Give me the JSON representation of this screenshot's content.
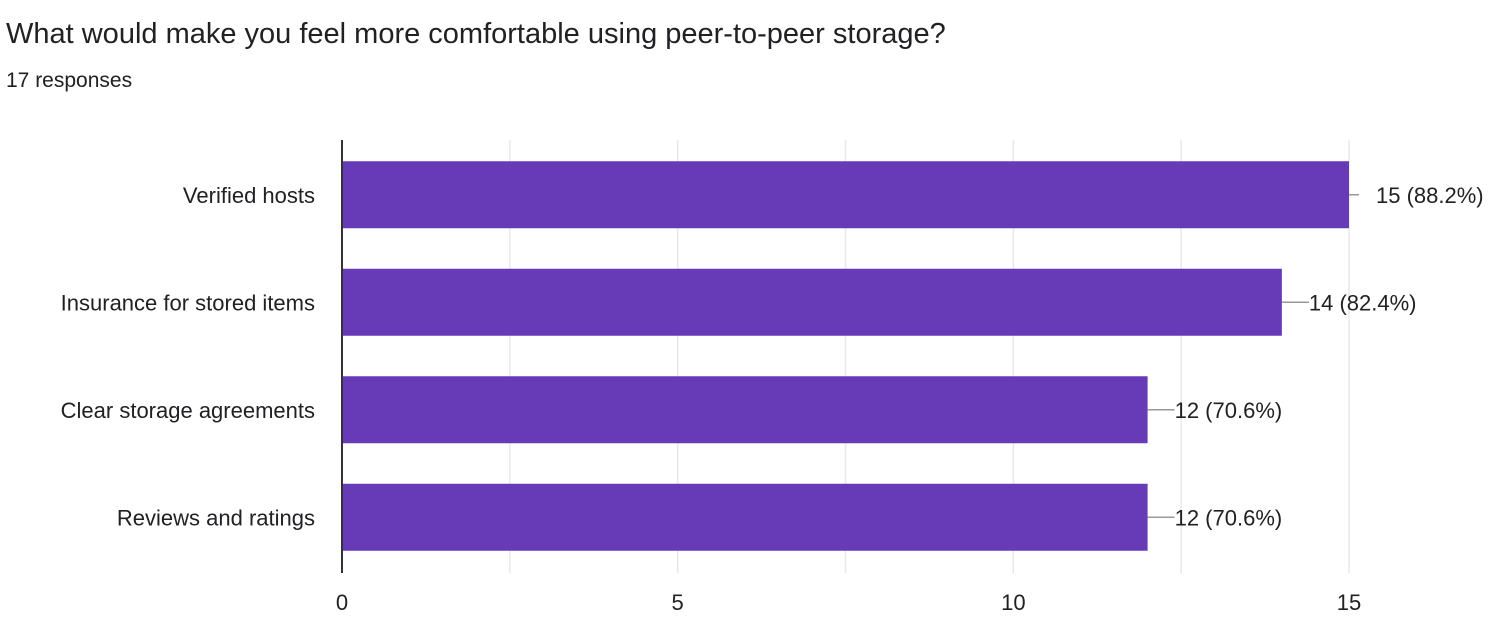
{
  "header": {
    "title": "What would make you feel more comfortable using peer-to-peer storage?",
    "responses": "17 responses"
  },
  "colors": {
    "bar": "#673ab7",
    "grid": "#e8e8e8",
    "axis": "#333333",
    "leader": "#999999",
    "text": "#202124"
  },
  "chart_data": {
    "type": "bar",
    "orientation": "horizontal",
    "title": "What would make you feel more comfortable using peer-to-peer storage?",
    "subtitle": "17 responses",
    "categories": [
      "Verified hosts",
      "Insurance for stored items",
      "Clear storage agreements",
      "Reviews and ratings"
    ],
    "values": [
      15,
      14,
      12,
      12
    ],
    "labels": [
      "15 (88.2%)",
      "14 (82.4%)",
      "12 (70.6%)",
      "12 (70.6%)"
    ],
    "xlim": [
      0,
      15
    ],
    "xticks": [
      0,
      5,
      10,
      15
    ],
    "xlabel": "",
    "ylabel": "",
    "grid": true
  }
}
